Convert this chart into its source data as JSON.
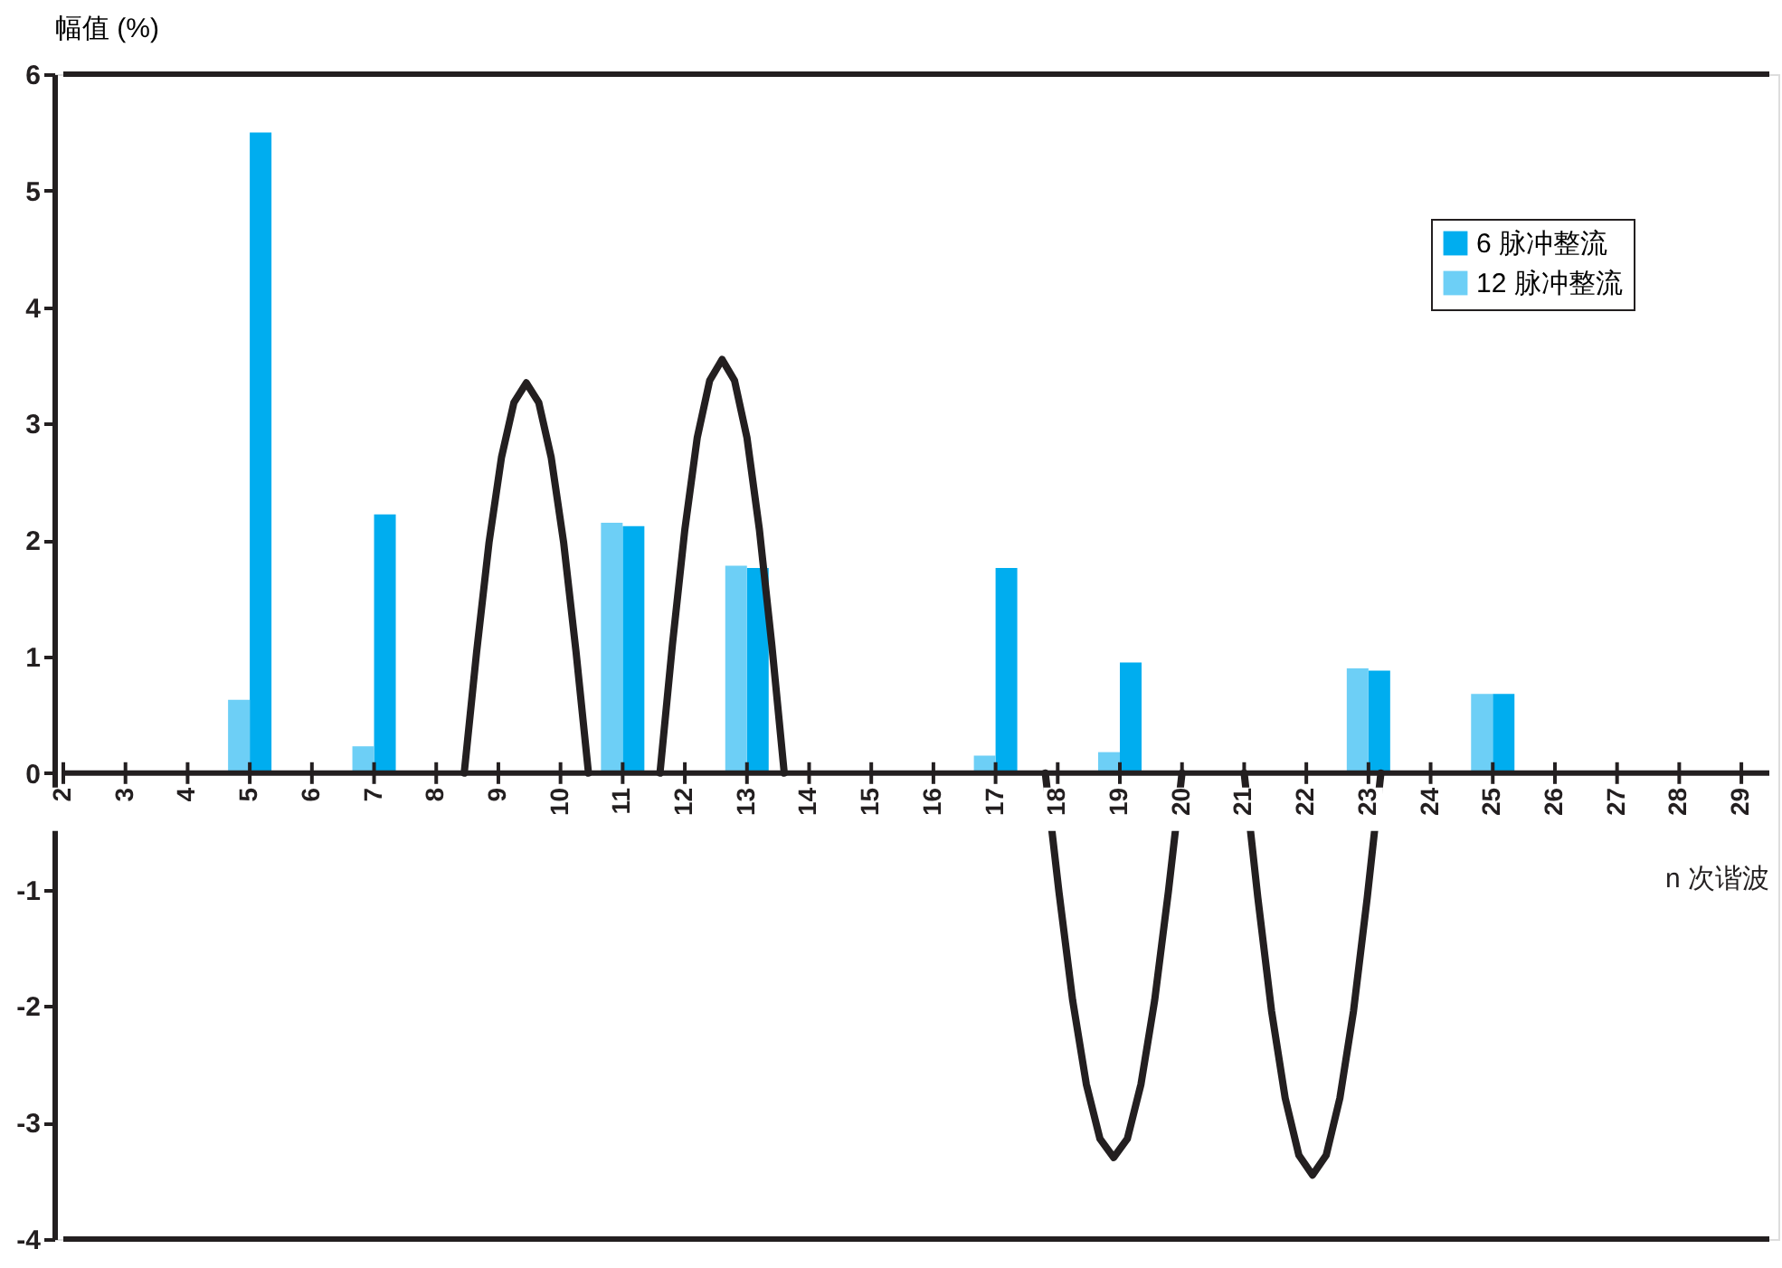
{
  "chart_data": {
    "type": "bar",
    "ylabel": "幅值 (%)",
    "xlabel": "n 次谐波",
    "x": [
      5,
      7,
      11,
      13,
      17,
      19,
      23,
      25
    ],
    "series": [
      {
        "name": "6 脉冲整流",
        "color": "#00adef",
        "values": [
          5.5,
          2.22,
          2.12,
          1.76,
          1.76,
          0.95,
          0.88,
          0.68
        ]
      },
      {
        "name": "12 脉冲整流",
        "color": "#6dcff6",
        "values": [
          0.63,
          0.23,
          2.15,
          1.78,
          0.15,
          0.18,
          0.9,
          0.68
        ]
      },
      {
        "type": "line",
        "color": "#231f20",
        "x": [
          8.45,
          8.65,
          8.85,
          9.05,
          9.25,
          9.45,
          9.65,
          9.85,
          10.05,
          10.25,
          10.45,
          11.0,
          11.6,
          11.8,
          12.0,
          12.2,
          12.4,
          12.6,
          12.8,
          13.0,
          13.2,
          13.4,
          13.6,
          15.5,
          17.8,
          18.02,
          18.24,
          18.46,
          18.68,
          18.9,
          19.12,
          19.34,
          19.56,
          19.78,
          20.0,
          20.5,
          21.0,
          21.22,
          21.44,
          21.66,
          21.88,
          22.1,
          22.32,
          22.54,
          22.76,
          22.98,
          23.2
        ],
        "values": [
          0,
          1.04,
          1.98,
          2.71,
          3.18,
          3.35,
          3.18,
          2.71,
          1.98,
          1.04,
          0,
          null,
          0,
          1.1,
          2.09,
          2.88,
          3.37,
          3.55,
          3.37,
          2.88,
          2.09,
          1.1,
          0,
          null,
          0,
          -1.02,
          -1.95,
          -2.67,
          -3.14,
          -3.3,
          -3.14,
          -2.67,
          -1.95,
          -1.02,
          0,
          null,
          0,
          -1.07,
          -2.04,
          -2.79,
          -3.28,
          -3.45,
          -3.28,
          -2.79,
          -2.04,
          -1.07,
          0
        ]
      }
    ],
    "xlim": [
      2,
      29.45
    ],
    "xticks": [
      2,
      3,
      4,
      5,
      6,
      7,
      8,
      9,
      10,
      11,
      12,
      13,
      14,
      15,
      16,
      17,
      18,
      19,
      20,
      21,
      22,
      23,
      24,
      25,
      26,
      27,
      28,
      29
    ],
    "ylim": [
      -4,
      6
    ],
    "yticks": [
      -4,
      -3,
      -2,
      -1,
      0,
      1,
      2,
      3,
      4,
      5,
      6
    ],
    "grid": false,
    "legend": "top right",
    "line_style": "solid"
  }
}
